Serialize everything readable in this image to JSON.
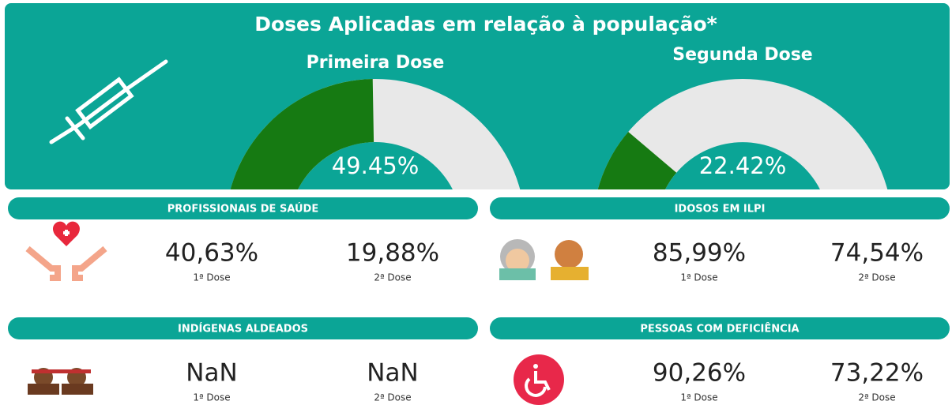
{
  "title": "Doses Aplicadas em relação à população*",
  "gauges": [
    {
      "label": "Primeira Dose",
      "value": 49.45,
      "value_label": "49.45%"
    },
    {
      "label": "Segunda Dose",
      "value": 22.42,
      "value_label": "22.42%"
    }
  ],
  "groups": [
    {
      "title": "PROFISSIONAIS DE SAÚDE",
      "doses": [
        {
          "value": "40,63%",
          "label": "1ª Dose"
        },
        {
          "value": "19,88%",
          "label": "2ª Dose"
        }
      ]
    },
    {
      "title": "IDOSOS EM ILPI",
      "doses": [
        {
          "value": "85,99%",
          "label": "1ª Dose"
        },
        {
          "value": "74,54%",
          "label": "2ª Dose"
        }
      ]
    },
    {
      "title": "INDÍGENAS ALDEADOS",
      "doses": [
        {
          "value": "NaN",
          "label": "1ª Dose"
        },
        {
          "value": "NaN",
          "label": "2ª Dose"
        }
      ]
    },
    {
      "title": "PESSOAS COM DEFICIÊNCIA",
      "doses": [
        {
          "value": "90,26%",
          "label": "1ª Dose"
        },
        {
          "value": "73,22%",
          "label": "2ª Dose"
        }
      ]
    }
  ]
}
